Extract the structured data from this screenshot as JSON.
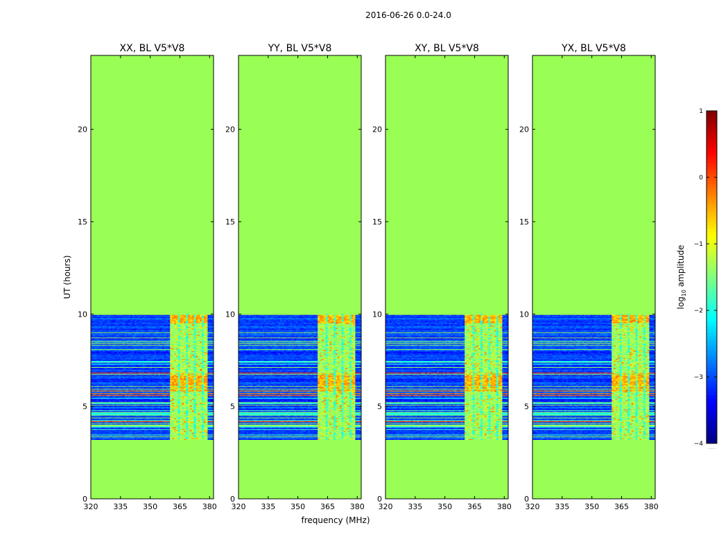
{
  "chart_data": {
    "type": "heatmap",
    "title": "2016-06-26 0.0-24.0",
    "xlabel": "frequency (MHz)",
    "ylabel": "UT (hours)",
    "xlim": [
      320,
      382
    ],
    "ylim": [
      0,
      24
    ],
    "xticks": [
      320,
      335,
      350,
      365,
      380
    ],
    "yticks": [
      0,
      5,
      10,
      15,
      20
    ],
    "data_time_range": [
      3.2,
      10.0
    ],
    "rfi_band_mhz": [
      360,
      379
    ],
    "baseline": "BL V5*V8",
    "panels": [
      {
        "title": "XX, BL V5*V8",
        "pol": "XX"
      },
      {
        "title": "YY, BL V5*V8",
        "pol": "YY"
      },
      {
        "title": "XY, BL V5*V8",
        "pol": "XY"
      },
      {
        "title": "YX, BL V5*V8",
        "pol": "YX"
      }
    ],
    "colorbar": {
      "label_prefix": "log",
      "label_sub": "10",
      "label_suffix": " amplitude",
      "range": [
        -4,
        1
      ],
      "ticks": [
        1,
        0,
        -1,
        -2,
        -3,
        -4
      ],
      "colormap": "jet",
      "masked_value": -1.2,
      "masked_color": "#99ff55",
      "masked_label": "....."
    }
  }
}
